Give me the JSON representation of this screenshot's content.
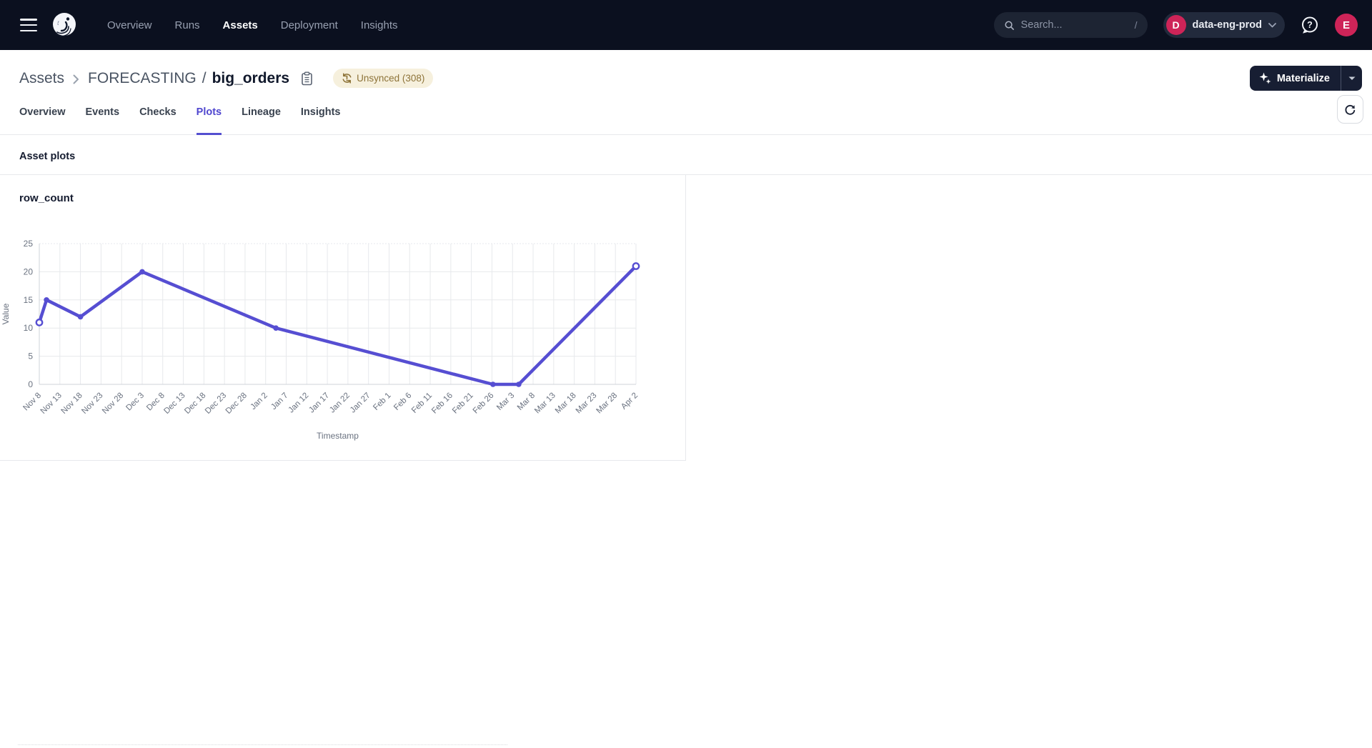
{
  "topnav": {
    "nav_items": [
      {
        "label": "Overview",
        "active": false
      },
      {
        "label": "Runs",
        "active": false
      },
      {
        "label": "Assets",
        "active": true
      },
      {
        "label": "Deployment",
        "active": false
      },
      {
        "label": "Insights",
        "active": false
      }
    ],
    "search": {
      "placeholder": "Search...",
      "shortcut": "/"
    },
    "deployment": {
      "initial": "D",
      "name": "data-eng-prod"
    },
    "user": {
      "initial": "E"
    }
  },
  "header": {
    "breadcrumb": {
      "root": "Assets",
      "group": "FORECASTING",
      "separator": "/",
      "asset": "big_orders"
    },
    "sync_badge": {
      "label": "Unsynced (308)"
    },
    "materialize": {
      "label": "Materialize"
    }
  },
  "tabs": [
    {
      "label": "Overview",
      "active": false
    },
    {
      "label": "Events",
      "active": false
    },
    {
      "label": "Checks",
      "active": false
    },
    {
      "label": "Plots",
      "active": true
    },
    {
      "label": "Lineage",
      "active": false
    },
    {
      "label": "Insights",
      "active": false
    }
  ],
  "section": {
    "title": "Asset plots"
  },
  "colors": {
    "nav_bg": "#0b101f",
    "accent_blurple": "#544fd0",
    "crimson": "#ce2458",
    "badge_bg": "#f6f0dd",
    "badge_text": "#8d7338",
    "grid": "#e7e9ec",
    "tick_text": "#6a7280",
    "line": "#564ed2"
  },
  "chart_data": {
    "type": "line",
    "title": "row_count",
    "xlabel": "Timestamp",
    "ylabel": "Value",
    "ylim": [
      0,
      25
    ],
    "yticks": [
      0,
      5,
      10,
      15,
      20,
      25
    ],
    "grid": true,
    "legend": false,
    "categories": [
      "Nov 8",
      "Nov 13",
      "Nov 18",
      "Nov 23",
      "Nov 28",
      "Dec 3",
      "Dec 8",
      "Dec 13",
      "Dec 18",
      "Dec 23",
      "Dec 28",
      "Jan 2",
      "Jan 7",
      "Jan 12",
      "Jan 17",
      "Jan 22",
      "Jan 27",
      "Feb 1",
      "Feb 6",
      "Feb 11",
      "Feb 16",
      "Feb 21",
      "Feb 26",
      "Mar 3",
      "Mar 8",
      "Mar 13",
      "Mar 18",
      "Mar 23",
      "Mar 28",
      "Apr 2"
    ],
    "series": [
      {
        "name": "row_count",
        "points": [
          {
            "date": "Nov 8",
            "x": 0,
            "y": 11
          },
          {
            "date": "Nov 10",
            "x": 0.35,
            "y": 15
          },
          {
            "date": "Nov 18",
            "x": 2,
            "y": 12
          },
          {
            "date": "Dec 3",
            "x": 5,
            "y": 20
          },
          {
            "date": "Jan 5",
            "x": 11.5,
            "y": 10
          },
          {
            "date": "Feb 26",
            "x": 22.05,
            "y": 0
          },
          {
            "date": "Mar 5",
            "x": 23.3,
            "y": 0
          },
          {
            "date": "Apr 2",
            "x": 29,
            "y": 21
          }
        ]
      }
    ]
  }
}
